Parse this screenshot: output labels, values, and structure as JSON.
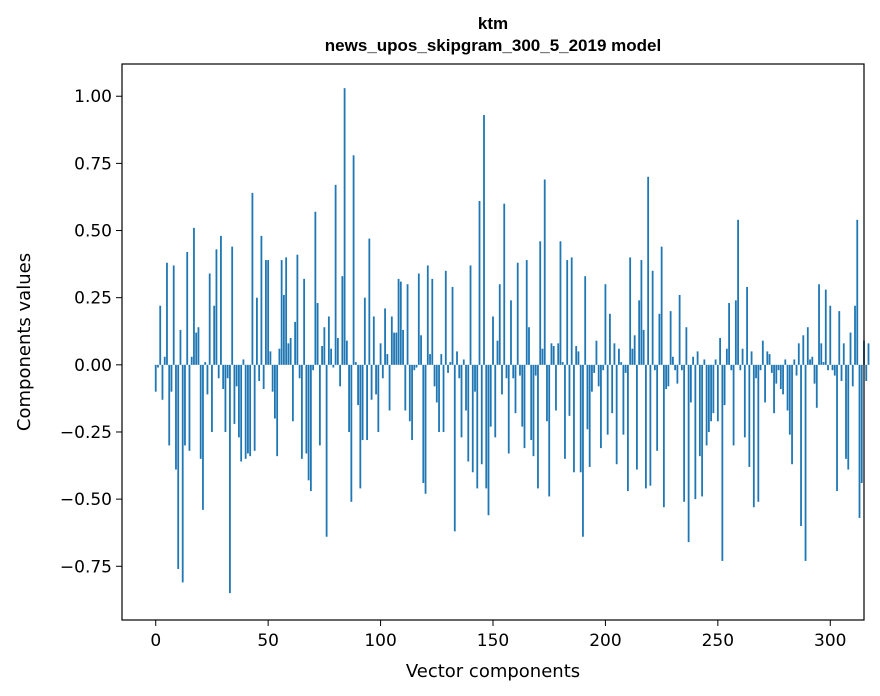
{
  "chart_data": {
    "type": "bar",
    "title": "ktm",
    "subtitle": "news_upos_skipgram_300_5_2019 model",
    "xlabel": "Vector components",
    "ylabel": "Components values",
    "xlim": [
      -15,
      315
    ],
    "ylim": [
      -0.95,
      1.12
    ],
    "xticks": [
      0,
      50,
      100,
      150,
      200,
      250,
      300
    ],
    "xtick_labels": [
      "0",
      "50",
      "100",
      "150",
      "200",
      "250",
      "300"
    ],
    "yticks": [
      -0.75,
      -0.5,
      -0.25,
      0.0,
      0.25,
      0.5,
      0.75,
      1.0
    ],
    "ytick_labels": [
      "−0.75",
      "−0.50",
      "−0.25",
      "0.00",
      "0.25",
      "0.50",
      "0.75",
      "1.00"
    ],
    "bar_color": "#1f77b4",
    "grid": false,
    "values": [
      -0.1,
      -0.01,
      0.22,
      -0.13,
      0.03,
      0.38,
      -0.3,
      -0.1,
      0.37,
      -0.39,
      -0.76,
      0.13,
      -0.81,
      -0.3,
      0.42,
      -0.32,
      0.03,
      0.51,
      0.12,
      0.14,
      -0.35,
      -0.54,
      0.01,
      -0.11,
      0.34,
      -0.25,
      0.22,
      0.43,
      -0.05,
      0.48,
      -0.09,
      -0.25,
      -0.05,
      -0.85,
      0.44,
      -0.22,
      -0.08,
      -0.27,
      -0.36,
      0.02,
      -0.35,
      -0.33,
      -0.34,
      0.64,
      -0.32,
      0.25,
      -0.06,
      0.48,
      -0.09,
      0.39,
      0.39,
      0.05,
      -0.1,
      -0.2,
      -0.34,
      0.06,
      0.39,
      0.26,
      0.4,
      0.08,
      0.1,
      -0.21,
      0.16,
      0.41,
      -0.05,
      -0.35,
      0.32,
      -0.33,
      -0.43,
      -0.47,
      -0.02,
      0.57,
      0.23,
      -0.3,
      0.07,
      0.14,
      -0.64,
      0.18,
      0.06,
      -0.01,
      0.67,
      0.1,
      -0.08,
      0.33,
      1.03,
      0.09,
      -0.25,
      -0.51,
      0.78,
      0.01,
      -0.15,
      -0.46,
      -0.28,
      0.25,
      -0.28,
      0.47,
      -0.13,
      0.18,
      -0.11,
      -0.25,
      0.08,
      -0.05,
      0.21,
      0.04,
      -0.17,
      0.18,
      0.12,
      0.12,
      0.32,
      0.31,
      0.13,
      -0.17,
      0.3,
      -0.21,
      -0.28,
      -0.02,
      -0.01,
      0.34,
      0.11,
      -0.44,
      -0.48,
      0.37,
      0.04,
      0.32,
      -0.08,
      -0.14,
      -0.25,
      0.04,
      -0.25,
      0.35,
      -0.03,
      0.01,
      0.29,
      -0.62,
      0.05,
      -0.05,
      -0.27,
      0.02,
      -0.17,
      -0.36,
      0.37,
      -0.4,
      -0.1,
      -0.46,
      0.61,
      -0.37,
      0.93,
      -0.46,
      -0.56,
      -0.23,
      0.18,
      -0.27,
      0.09,
      0.3,
      -0.11,
      0.6,
      -0.05,
      -0.33,
      0.24,
      -0.05,
      -0.18,
      0.38,
      -0.04,
      -0.23,
      -0.31,
      0.39,
      0.14,
      -0.28,
      -0.34,
      -0.04,
      -0.46,
      0.46,
      0.06,
      0.69,
      -0.21,
      -0.49,
      0.08,
      0.07,
      -0.17,
      0.08,
      0.46,
      0.01,
      -0.35,
      0.39,
      -0.19,
      0.4,
      -0.4,
      0.07,
      0.05,
      -0.4,
      -0.64,
      0.33,
      -0.24,
      -0.38,
      -0.1,
      -0.03,
      0.09,
      -0.08,
      -0.31,
      -0.02,
      0.3,
      -0.26,
      0.19,
      -0.18,
      0.08,
      -0.37,
      0.06,
      0.01,
      -0.26,
      -0.03,
      -0.47,
      0.4,
      0.06,
      0.11,
      -0.39,
      0.24,
      0.39,
      0.13,
      -0.46,
      0.7,
      -0.45,
      0.35,
      -0.02,
      -0.32,
      0.19,
      0.44,
      -0.53,
      -0.09,
      -0.08,
      0.2,
      0.03,
      -0.02,
      -0.07,
      0.26,
      -0.02,
      -0.51,
      0.14,
      -0.66,
      -0.14,
      0.03,
      -0.5,
      0.05,
      -0.34,
      -0.49,
      0.02,
      -0.3,
      -0.25,
      -0.21,
      -0.18,
      0.02,
      -0.21,
      0.1,
      -0.73,
      -0.15,
      0.06,
      0.23,
      -0.02,
      -0.3,
      0.24,
      0.54,
      -0.02,
      0.06,
      -0.27,
      0.29,
      -0.38,
      0.05,
      -0.53,
      -0.05,
      -0.51,
      -0.02,
      0.09,
      -0.14,
      0.05,
      0.04,
      -0.03,
      -0.18,
      -0.07,
      -0.02,
      -0.09,
      -0.11,
      0.02,
      -0.17,
      -0.26,
      -0.37,
      0.02,
      -0.04,
      0.08,
      -0.6,
      0.11,
      -0.73,
      0.14,
      0.02,
      0.03,
      -0.07,
      -0.16,
      0.3,
      0.08,
      0.01,
      0.28,
      -0.02,
      0.22,
      -0.02,
      -0.04,
      -0.47,
      0.2,
      -0.06,
      0.08,
      -0.35,
      -0.39,
      0.12,
      -0.08,
      0.22,
      0.54,
      -0.57,
      -0.44,
      0.09,
      -0.06,
      0.08
    ]
  }
}
